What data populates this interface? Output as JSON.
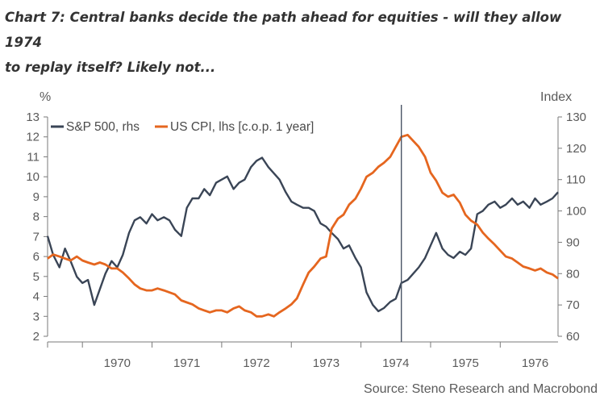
{
  "title_line1": "Chart 7: Central banks decide the path ahead for equities - will they allow 1974",
  "title_line2": "to replay itself? Likely not...",
  "source": "Source: Steno Research and Macrobond",
  "colors": {
    "sp500": "#3a4556",
    "cpi": "#e5661f",
    "axis": "#7a7a7a",
    "vline": "#4a5566"
  },
  "chart_data": {
    "type": "line",
    "title": "Chart 7: Central banks decide the path ahead for equities - will they allow 1974 to replay itself? Likely not...",
    "left_axis": {
      "unit": "%",
      "min": 2,
      "max": 13,
      "ticks": [
        2,
        3,
        4,
        5,
        6,
        7,
        8,
        9,
        10,
        11,
        12,
        13
      ]
    },
    "right_axis": {
      "unit": "Index",
      "min": 60,
      "max": 130,
      "ticks": [
        60,
        70,
        80,
        90,
        100,
        110,
        120,
        130
      ]
    },
    "x_axis": {
      "min": 1969.5,
      "max": 1976.83,
      "year_labels": [
        "1970",
        "1971",
        "1972",
        "1973",
        "1974",
        "1975",
        "1976"
      ]
    },
    "vertical_marker": 1974.58,
    "legend_position": "top-left",
    "series": [
      {
        "name": "S&P 500, rhs",
        "axis": "right",
        "x": [
          1969.5,
          1969.58,
          1969.67,
          1969.75,
          1969.83,
          1969.92,
          1970.0,
          1970.08,
          1970.17,
          1970.25,
          1970.33,
          1970.42,
          1970.5,
          1970.58,
          1970.67,
          1970.75,
          1970.83,
          1970.92,
          1971.0,
          1971.08,
          1971.17,
          1971.25,
          1971.33,
          1971.42,
          1971.5,
          1971.58,
          1971.67,
          1971.75,
          1971.83,
          1971.92,
          1972.0,
          1972.08,
          1972.17,
          1972.25,
          1972.33,
          1972.42,
          1972.5,
          1972.58,
          1972.67,
          1972.75,
          1972.83,
          1972.92,
          1973.0,
          1973.08,
          1973.17,
          1973.25,
          1973.33,
          1973.42,
          1973.5,
          1973.58,
          1973.67,
          1973.75,
          1973.83,
          1973.92,
          1974.0,
          1974.08,
          1974.17,
          1974.25,
          1974.33,
          1974.42,
          1974.5,
          1974.58,
          1974.67,
          1974.75,
          1974.83,
          1974.92,
          1975.0,
          1975.08,
          1975.17,
          1975.25,
          1975.33,
          1975.42,
          1975.5,
          1975.58,
          1975.67,
          1975.75,
          1975.83,
          1975.92,
          1976.0,
          1976.08,
          1976.17,
          1976.25,
          1976.33,
          1976.42,
          1976.5,
          1976.58,
          1976.67,
          1976.75,
          1976.83
        ],
        "values": [
          92,
          86,
          82,
          88,
          84,
          79,
          77,
          78,
          70,
          75,
          80,
          84,
          82,
          86,
          93,
          97,
          98,
          96,
          99,
          97,
          98,
          97,
          94,
          92,
          101,
          104,
          104,
          107,
          105,
          109,
          110,
          111,
          107,
          109,
          110,
          114,
          116,
          117,
          114,
          112,
          110,
          106,
          103,
          102,
          101,
          101,
          100,
          96,
          95,
          93,
          91,
          88,
          89,
          85,
          82,
          74,
          70,
          68,
          69,
          71,
          72,
          77,
          78,
          80,
          82,
          85,
          89,
          93,
          88,
          86,
          85,
          87,
          86,
          88,
          99,
          100,
          102,
          103,
          101,
          102,
          104,
          102,
          103,
          101,
          104,
          102,
          103,
          104,
          106
        ]
      },
      {
        "name": "US CPI, lhs [c.o.p. 1 year]",
        "axis": "left",
        "x": [
          1969.5,
          1969.58,
          1969.67,
          1969.75,
          1969.83,
          1969.92,
          1970.0,
          1970.08,
          1970.17,
          1970.25,
          1970.33,
          1970.42,
          1970.5,
          1970.58,
          1970.67,
          1970.75,
          1970.83,
          1970.92,
          1971.0,
          1971.08,
          1971.17,
          1971.25,
          1971.33,
          1971.42,
          1971.5,
          1971.58,
          1971.67,
          1971.75,
          1971.83,
          1971.92,
          1972.0,
          1972.08,
          1972.17,
          1972.25,
          1972.33,
          1972.42,
          1972.5,
          1972.58,
          1972.67,
          1972.75,
          1972.83,
          1972.92,
          1973.0,
          1973.08,
          1973.17,
          1973.25,
          1973.33,
          1973.42,
          1973.5,
          1973.58,
          1973.67,
          1973.75,
          1973.83,
          1973.92,
          1974.0,
          1974.08,
          1974.17,
          1974.25,
          1974.33,
          1974.42,
          1974.5,
          1974.58,
          1974.67,
          1974.75,
          1974.83,
          1974.92,
          1975.0,
          1975.08,
          1975.17,
          1975.25,
          1975.33,
          1975.42,
          1975.5,
          1975.58,
          1975.67,
          1975.75,
          1975.83,
          1975.92,
          1976.0,
          1976.08,
          1976.17,
          1976.25,
          1976.33,
          1976.42,
          1976.5,
          1976.58,
          1976.67,
          1976.75,
          1976.83
        ],
        "values": [
          5.9,
          6.1,
          6.0,
          5.9,
          5.8,
          6.0,
          5.8,
          5.7,
          5.6,
          5.7,
          5.6,
          5.4,
          5.4,
          5.2,
          4.9,
          4.6,
          4.4,
          4.3,
          4.3,
          4.4,
          4.3,
          4.2,
          4.1,
          3.8,
          3.7,
          3.6,
          3.4,
          3.3,
          3.2,
          3.3,
          3.3,
          3.2,
          3.4,
          3.5,
          3.3,
          3.2,
          3.0,
          3.0,
          3.1,
          3.0,
          3.2,
          3.4,
          3.6,
          3.9,
          4.6,
          5.2,
          5.5,
          5.9,
          6.0,
          7.4,
          7.9,
          8.1,
          8.6,
          8.9,
          9.4,
          10.0,
          10.2,
          10.5,
          10.7,
          11.0,
          11.5,
          12.0,
          12.1,
          11.8,
          11.5,
          11.0,
          10.2,
          9.8,
          9.2,
          9.0,
          9.1,
          8.7,
          8.1,
          7.8,
          7.6,
          7.2,
          6.9,
          6.6,
          6.3,
          6.0,
          5.9,
          5.7,
          5.5,
          5.4,
          5.3,
          5.4,
          5.2,
          5.1,
          4.9
        ]
      }
    ]
  }
}
